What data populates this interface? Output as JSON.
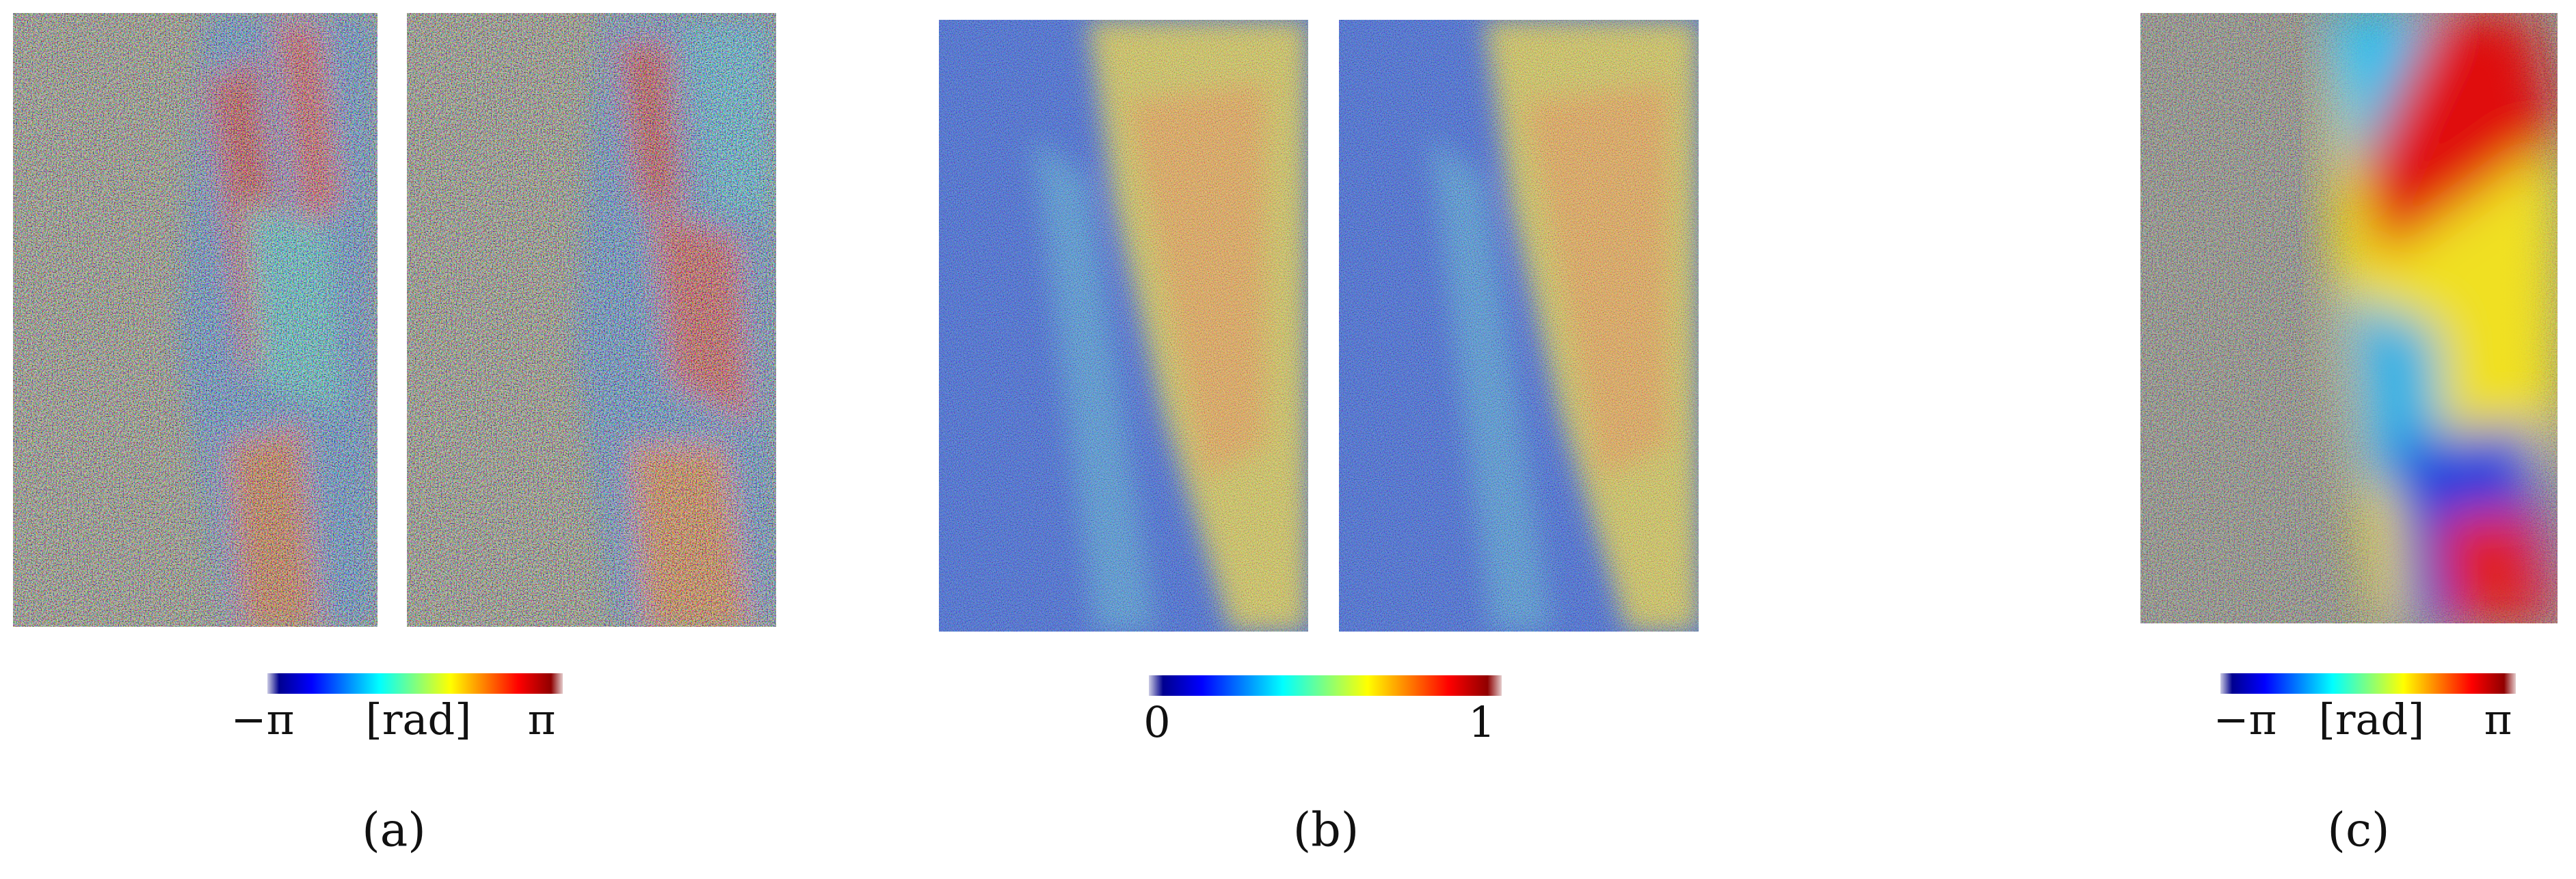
{
  "panels": [
    {
      "caption": "(a)",
      "colorbar": {
        "min_label": "−π",
        "unit_label": "[rad]",
        "max_label": "π"
      }
    },
    {
      "caption": "(b)",
      "colorbar": {
        "min_label": "0",
        "max_label": "1"
      }
    },
    {
      "caption": "(c)",
      "colorbar": {
        "min_label": "−π",
        "unit_label": "[rad]",
        "max_label": "π"
      }
    }
  ]
}
